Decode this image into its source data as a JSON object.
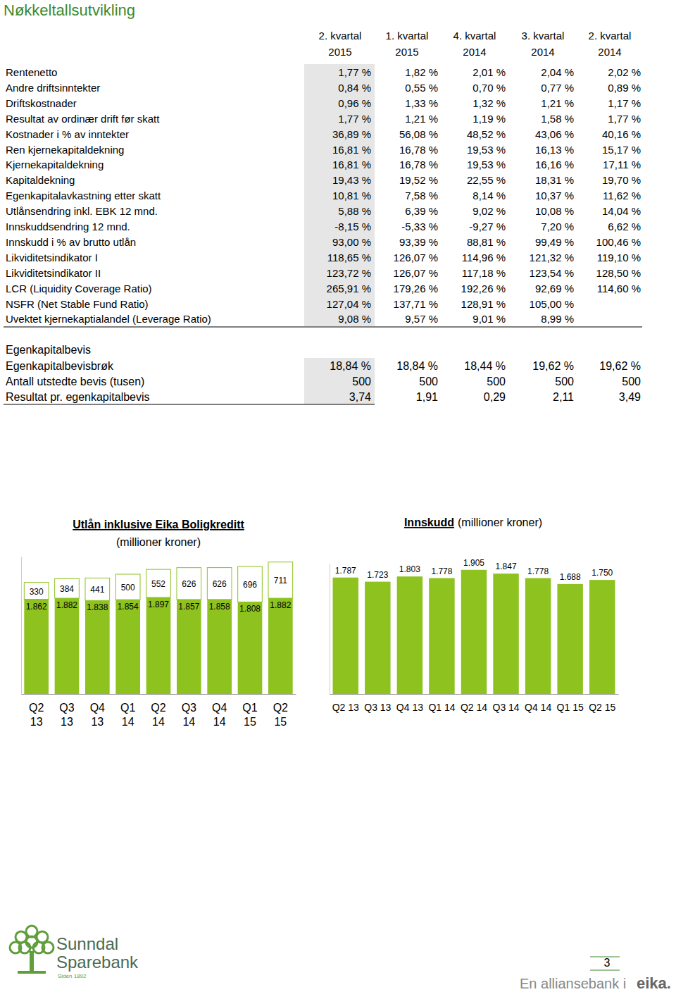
{
  "title": "Nøkkeltallsutvikling",
  "table": {
    "columns": [
      {
        "quarter": "2. kvartal",
        "year": "2015"
      },
      {
        "quarter": "1. kvartal",
        "year": "2015"
      },
      {
        "quarter": "4. kvartal",
        "year": "2014"
      },
      {
        "quarter": "3. kvartal",
        "year": "2014"
      },
      {
        "quarter": "2. kvartal",
        "year": "2014"
      }
    ],
    "rows": [
      [
        "Rentenetto",
        "1,77 %",
        "1,82 %",
        "2,01 %",
        "2,04 %",
        "2,02 %"
      ],
      [
        "Andre driftsinntekter",
        "0,84 %",
        "0,55 %",
        "0,70 %",
        "0,77 %",
        "0,89 %"
      ],
      [
        "Driftskostnader",
        "0,96 %",
        "1,33 %",
        "1,32 %",
        "1,21 %",
        "1,17 %"
      ],
      [
        "Resultat av ordinær drift før skatt",
        "1,77 %",
        "1,21 %",
        "1,19 %",
        "1,58 %",
        "1,77 %"
      ],
      [
        "Kostnader i % av inntekter",
        "36,89 %",
        "56,08 %",
        "48,52 %",
        "43,06 %",
        "40,16 %"
      ],
      [
        "Ren kjernekapitaldekning",
        "16,81 %",
        "16,78 %",
        "19,53 %",
        "16,13 %",
        "15,17 %"
      ],
      [
        "Kjernekapitaldekning",
        "16,81 %",
        "16,78 %",
        "19,53 %",
        "16,16 %",
        "17,11 %"
      ],
      [
        "Kapitaldekning",
        "19,43 %",
        "19,52 %",
        "22,55 %",
        "18,31 %",
        "19,70 %"
      ],
      [
        "Egenkapitalavkastning etter skatt",
        "10,81 %",
        "7,58 %",
        "8,14 %",
        "10,37 %",
        "11,62 %"
      ],
      [
        "Utlånsendring inkl. EBK 12 mnd.",
        "5,88 %",
        "6,39 %",
        "9,02 %",
        "10,08 %",
        "14,04 %"
      ],
      [
        "Innskuddsendring 12 mnd.",
        "-8,15 %",
        "-5,33 %",
        "-9,27 %",
        "7,20 %",
        "6,62 %"
      ],
      [
        "Innskudd i % av brutto utlån",
        "93,00 %",
        "93,39 %",
        "88,81 %",
        "99,49 %",
        "100,46 %"
      ],
      [
        "Likviditetsindikator I",
        "118,65 %",
        "126,07 %",
        "114,96 %",
        "121,32 %",
        "119,10 %"
      ],
      [
        "Likviditetsindikator II",
        "123,72 %",
        "126,07 %",
        "117,18 %",
        "123,54 %",
        "128,50 %"
      ],
      [
        "LCR (Liquidity Coverage Ratio)",
        "265,91 %",
        "179,26 %",
        "192,26 %",
        "92,69 %",
        "114,60 %"
      ],
      [
        "NSFR (Net Stable Fund Ratio)",
        "127,04 %",
        "137,71 %",
        "128,91 %",
        "105,00 %",
        null
      ],
      [
        "Uvektet kjernekaptialandel (Leverage Ratio)",
        "9,08 %",
        "9,57 %",
        "9,01 %",
        "8,99 %",
        null
      ]
    ]
  },
  "equity_section": {
    "heading": "Egenkapitalbevis",
    "rows": [
      [
        "Egenkapitalbevisbrøk",
        "18,84 %",
        "18,84 %",
        "18,44 %",
        "19,62 %",
        "19,62 %"
      ],
      [
        "Antall utstedte bevis (tusen)",
        "500",
        "500",
        "500",
        "500",
        "500"
      ],
      [
        "Resultat pr. egenkapitalbevis",
        "3,74",
        "1,91",
        "0,29",
        "2,11",
        "3,49"
      ]
    ]
  },
  "chart_data": [
    {
      "type": "bar",
      "stacked": true,
      "data_labels": true,
      "tick_labels": "x",
      "title": "Utlån inklusive Eika Boligkreditt",
      "subtitle": "(millioner kroner)",
      "categories": [
        "Q2 13",
        "Q3 13",
        "Q4 13",
        "Q1 14",
        "Q2 14",
        "Q3 14",
        "Q4 14",
        "Q1 15",
        "Q2 15"
      ],
      "ylim": [
        0,
        2700
      ],
      "series": [
        {
          "color": "#8dc21f",
          "values": [
            1862,
            1882,
            1838,
            1854,
            1897,
            1857,
            1858,
            1808,
            1882
          ],
          "value_labels": [
            "1.862",
            "1.882",
            "1.838",
            "1.854",
            "1.897",
            "1.857",
            "1.858",
            "1.808",
            "1.882"
          ]
        },
        {
          "color": "#ffffff",
          "values": [
            330,
            384,
            441,
            500,
            552,
            626,
            626,
            696,
            711
          ]
        }
      ]
    },
    {
      "type": "bar",
      "data_labels": true,
      "tick_labels": "x",
      "title": "Innskudd",
      "subtitle": "(millioner kroner)",
      "categories": [
        "Q2 13",
        "Q3 13",
        "Q4 13",
        "Q1 14",
        "Q2 14",
        "Q3 14",
        "Q4 14",
        "Q1 15",
        "Q2 15"
      ],
      "ylim": [
        0,
        2000
      ],
      "series": [
        {
          "color": "#8dc21f",
          "values": [
            1787,
            1723,
            1803,
            1778,
            1905,
            1847,
            1778,
            1688,
            1750
          ],
          "value_labels": [
            "1.787",
            "1.723",
            "1.803",
            "1.778",
            "1.905",
            "1.847",
            "1.778",
            "1.688",
            "1.750"
          ]
        }
      ]
    }
  ],
  "footer": {
    "bank_line1": "Sunndal",
    "bank_line2": "Sparebank",
    "since": "Siden 1892",
    "page": "3",
    "alliance": "En alliansebank i",
    "brand": "eika."
  }
}
